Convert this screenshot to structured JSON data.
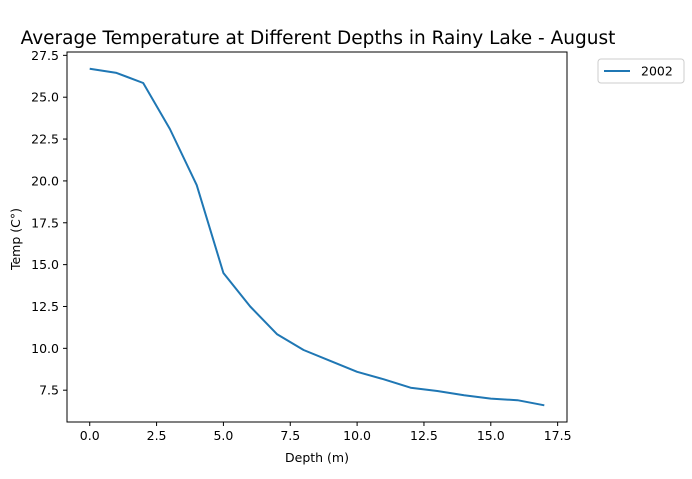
{
  "chart_data": {
    "type": "line",
    "title": "Average Temperature at Different Depths in Rainy Lake - August",
    "xlabel": "Depth (m)",
    "ylabel": "Temp (C°)",
    "xlim": [
      -0.85,
      17.85
    ],
    "ylim": [
      5.6,
      27.7
    ],
    "xticks": [
      0.0,
      2.5,
      5.0,
      7.5,
      10.0,
      12.5,
      15.0,
      17.5
    ],
    "xtick_labels": [
      "0.0",
      "2.5",
      "5.0",
      "7.5",
      "10.0",
      "12.5",
      "15.0",
      "17.5"
    ],
    "yticks": [
      7.5,
      10.0,
      12.5,
      15.0,
      17.5,
      20.0,
      22.5,
      25.0,
      27.5
    ],
    "ytick_labels": [
      "7.5",
      "10.0",
      "12.5",
      "15.0",
      "17.5",
      "20.0",
      "22.5",
      "25.0",
      "27.5"
    ],
    "grid": false,
    "legend_position": "outside-top-right",
    "series": [
      {
        "name": "2002",
        "color": "#1f77b4",
        "x": [
          0,
          1,
          2,
          3,
          4,
          5,
          6,
          7,
          8,
          9,
          10,
          11,
          12,
          13,
          14,
          15,
          16,
          17
        ],
        "y": [
          26.7,
          26.45,
          25.85,
          23.1,
          19.75,
          14.5,
          12.5,
          10.85,
          9.9,
          9.25,
          8.6,
          8.15,
          7.65,
          7.45,
          7.2,
          7.0,
          6.9,
          6.6
        ]
      }
    ]
  }
}
